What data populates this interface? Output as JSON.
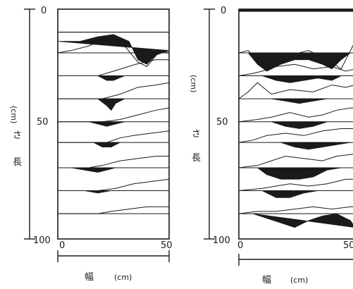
{
  "chart_data": {
    "type": "profile-diagram",
    "panels": [
      {
        "x_ticks": [
          "0",
          "50"
        ],
        "y_ticks": [
          "0",
          "50",
          "100"
        ],
        "y_label_char": "長",
        "y_label_char2": "さ",
        "y_label_unit": "(cm)",
        "x_label_char": "幅",
        "x_label_unit": "(cm)",
        "xlim": [
          0,
          50
        ],
        "ylim": [
          0,
          100
        ],
        "profiles": [
          {
            "base": 10,
            "surface": [
              [
                0,
                10
              ],
              [
                12,
                10
              ],
              [
                16,
                10
              ],
              [
                25,
                10
              ],
              [
                32,
                10
              ],
              [
                40,
                10
              ],
              [
                50,
                10
              ]
            ],
            "fill": [
              [
                0,
                14
              ],
              [
                10,
                14
              ],
              [
                18,
                12
              ],
              [
                25,
                11
              ],
              [
                32,
                14
              ],
              [
                36,
                22
              ],
              [
                40,
                24
              ],
              [
                44,
                20
              ],
              [
                50,
                18
              ]
            ]
          },
          {
            "base": 19,
            "surface": [
              [
                0,
                19
              ],
              [
                6,
                18
              ],
              [
                14,
                16
              ],
              [
                23,
                12
              ],
              [
                30,
                16
              ],
              [
                36,
                23
              ],
              [
                40,
                25
              ],
              [
                46,
                18
              ],
              [
                50,
                19
              ]
            ],
            "fill": []
          },
          {
            "base": 29,
            "surface": [
              [
                0,
                29
              ],
              [
                10,
                29
              ],
              [
                18,
                29
              ],
              [
                25,
                27
              ],
              [
                35,
                24
              ],
              [
                44,
                22
              ],
              [
                50,
                22
              ]
            ],
            "fill": [
              [
                18,
                29
              ],
              [
                22,
                31
              ],
              [
                25,
                31
              ],
              [
                30,
                29
              ]
            ]
          },
          {
            "base": 39,
            "surface": [
              [
                0,
                39
              ],
              [
                10,
                39
              ],
              [
                20,
                39
              ],
              [
                28,
                37
              ],
              [
                36,
                34
              ],
              [
                44,
                33
              ],
              [
                50,
                32
              ]
            ],
            "fill": [
              [
                18,
                39
              ],
              [
                22,
                42
              ],
              [
                24,
                44
              ],
              [
                26,
                41
              ],
              [
                30,
                39
              ]
            ]
          },
          {
            "base": 49,
            "surface": [
              [
                0,
                49
              ],
              [
                10,
                49
              ],
              [
                20,
                49
              ],
              [
                28,
                48
              ],
              [
                36,
                46
              ],
              [
                44,
                44
              ],
              [
                50,
                43
              ]
            ],
            "fill": [
              [
                14,
                49
              ],
              [
                18,
                50
              ],
              [
                22,
                51
              ],
              [
                26,
                50
              ],
              [
                30,
                49
              ]
            ]
          },
          {
            "base": 58,
            "surface": [
              [
                0,
                58
              ],
              [
                10,
                58
              ],
              [
                22,
                58
              ],
              [
                28,
                56
              ],
              [
                34,
                55
              ],
              [
                42,
                54
              ],
              [
                50,
                53
              ]
            ],
            "fill": [
              [
                16,
                58
              ],
              [
                20,
                60
              ],
              [
                24,
                60
              ],
              [
                28,
                58
              ]
            ]
          },
          {
            "base": 69,
            "surface": [
              [
                0,
                69
              ],
              [
                8,
                69
              ],
              [
                14,
                69
              ],
              [
                20,
                68
              ],
              [
                28,
                66
              ],
              [
                36,
                65
              ],
              [
                44,
                64
              ],
              [
                50,
                64
              ]
            ],
            "fill": [
              [
                6,
                69
              ],
              [
                12,
                70
              ],
              [
                18,
                71
              ],
              [
                22,
                70
              ],
              [
                26,
                69
              ]
            ]
          },
          {
            "base": 79,
            "surface": [
              [
                0,
                79
              ],
              [
                10,
                79
              ],
              [
                18,
                79
              ],
              [
                26,
                78
              ],
              [
                34,
                76
              ],
              [
                42,
                75
              ],
              [
                50,
                74
              ]
            ],
            "fill": [
              [
                12,
                79
              ],
              [
                18,
                80
              ],
              [
                24,
                79
              ]
            ]
          },
          {
            "base": 89,
            "surface": [
              [
                0,
                89
              ],
              [
                10,
                89
              ],
              [
                18,
                89
              ],
              [
                24,
                88
              ],
              [
                32,
                87
              ],
              [
                40,
                86
              ],
              [
                50,
                86
              ]
            ],
            "fill": []
          }
        ]
      },
      {
        "x_ticks": [
          "0",
          "50"
        ],
        "y_ticks": [
          "0",
          "50",
          "100"
        ],
        "y_label_char": "長",
        "y_label_char2": "さ",
        "y_label_unit": "(cm)",
        "x_label_char": "幅",
        "x_label_unit": "(cm)",
        "xlim": [
          0,
          50
        ],
        "ylim": [
          0,
          100
        ],
        "profiles": [
          {
            "base": 0,
            "surface": [],
            "fill": [
              [
                0,
                0
              ],
              [
                50,
                0
              ],
              [
                50,
                1
              ],
              [
                0,
                1
              ]
            ]
          },
          {
            "base": 19,
            "surface": [
              [
                0,
                19
              ],
              [
                4,
                18
              ],
              [
                8,
                22
              ],
              [
                14,
                25
              ],
              [
                22,
                20
              ],
              [
                30,
                18
              ],
              [
                38,
                22
              ],
              [
                44,
                26
              ],
              [
                48,
                18
              ],
              [
                50,
                14
              ]
            ],
            "fill": [
              [
                4,
                19
              ],
              [
                8,
                24
              ],
              [
                12,
                27
              ],
              [
                18,
                24
              ],
              [
                24,
                22
              ],
              [
                30,
                22
              ],
              [
                36,
                24
              ],
              [
                40,
                26
              ],
              [
                44,
                22
              ],
              [
                48,
                19
              ]
            ]
          },
          {
            "base": 29,
            "surface": [
              [
                0,
                29
              ],
              [
                6,
                28
              ],
              [
                10,
                27
              ],
              [
                16,
                25
              ],
              [
                24,
                24
              ],
              [
                32,
                26
              ],
              [
                40,
                25
              ],
              [
                46,
                27
              ],
              [
                50,
                26
              ]
            ],
            "fill": [
              [
                10,
                29
              ],
              [
                16,
                31
              ],
              [
                22,
                32
              ],
              [
                28,
                31
              ],
              [
                34,
                30
              ],
              [
                40,
                31
              ],
              [
                44,
                29
              ]
            ]
          },
          {
            "base": 39,
            "surface": [
              [
                0,
                39
              ],
              [
                4,
                36
              ],
              [
                8,
                32
              ],
              [
                14,
                37
              ],
              [
                22,
                35
              ],
              [
                32,
                36
              ],
              [
                40,
                33
              ],
              [
                46,
                34
              ],
              [
                50,
                33
              ]
            ],
            "fill": [
              [
                14,
                39
              ],
              [
                20,
                40
              ],
              [
                26,
                41
              ],
              [
                32,
                40
              ],
              [
                38,
                39
              ]
            ]
          },
          {
            "base": 49,
            "surface": [
              [
                0,
                49
              ],
              [
                8,
                48
              ],
              [
                14,
                47
              ],
              [
                22,
                45
              ],
              [
                30,
                47
              ],
              [
                36,
                46
              ],
              [
                42,
                44
              ],
              [
                48,
                43
              ],
              [
                50,
                43
              ]
            ],
            "fill": [
              [
                14,
                49
              ],
              [
                20,
                51
              ],
              [
                26,
                52
              ],
              [
                32,
                51
              ],
              [
                38,
                49
              ]
            ]
          },
          {
            "base": 58,
            "surface": [
              [
                0,
                58
              ],
              [
                6,
                57
              ],
              [
                12,
                55
              ],
              [
                20,
                54
              ],
              [
                28,
                55
              ],
              [
                36,
                53
              ],
              [
                44,
                52
              ],
              [
                50,
                52
              ]
            ],
            "fill": [
              [
                18,
                58
              ],
              [
                24,
                60
              ],
              [
                30,
                61
              ],
              [
                36,
                60
              ],
              [
                42,
                59
              ],
              [
                48,
                58
              ]
            ]
          },
          {
            "base": 69,
            "surface": [
              [
                0,
                69
              ],
              [
                8,
                68
              ],
              [
                14,
                66
              ],
              [
                20,
                64
              ],
              [
                28,
                65
              ],
              [
                36,
                66
              ],
              [
                42,
                64
              ],
              [
                50,
                63
              ]
            ],
            "fill": [
              [
                8,
                69
              ],
              [
                12,
                72
              ],
              [
                18,
                74
              ],
              [
                26,
                74
              ],
              [
                32,
                73
              ],
              [
                38,
                70
              ],
              [
                44,
                69
              ]
            ]
          },
          {
            "base": 79,
            "surface": [
              [
                0,
                79
              ],
              [
                10,
                78
              ],
              [
                16,
                77
              ],
              [
                22,
                76
              ],
              [
                30,
                77
              ],
              [
                38,
                76
              ],
              [
                46,
                74
              ],
              [
                50,
                74
              ]
            ],
            "fill": [
              [
                10,
                79
              ],
              [
                16,
                82
              ],
              [
                22,
                82
              ],
              [
                28,
                80
              ],
              [
                34,
                79
              ]
            ]
          },
          {
            "base": 89,
            "surface": [
              [
                0,
                89
              ],
              [
                8,
                88
              ],
              [
                16,
                88
              ],
              [
                24,
                87
              ],
              [
                32,
                86
              ],
              [
                40,
                87
              ],
              [
                48,
                86
              ],
              [
                50,
                86
              ]
            ],
            "fill": [
              [
                6,
                89
              ],
              [
                12,
                91
              ],
              [
                18,
                93
              ],
              [
                24,
                95
              ],
              [
                30,
                92
              ],
              [
                36,
                90
              ],
              [
                42,
                89
              ],
              [
                48,
                92
              ],
              [
                50,
                95
              ]
            ]
          }
        ]
      }
    ]
  }
}
